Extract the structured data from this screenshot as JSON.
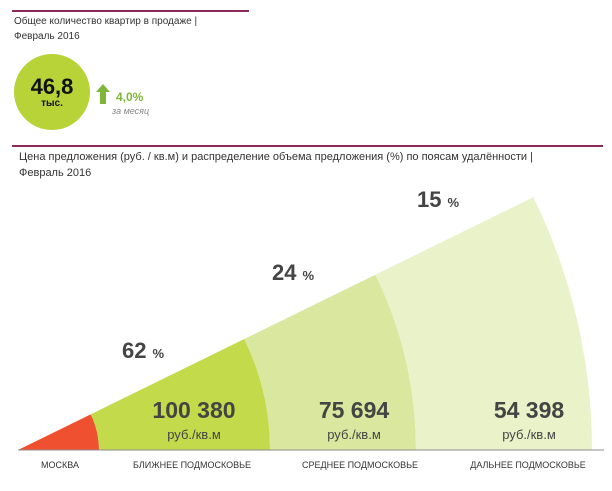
{
  "header": {
    "title_line1": "Общее количество квартир в продаже |",
    "title_line2": "Февраль 2016"
  },
  "kpi": {
    "value": "46,8",
    "unit": "тыс.",
    "change": "4,0%",
    "change_note": "за месяц"
  },
  "chart_header": {
    "line1": "Цена предложения (руб. / кв.м) и распределение объема предложения (%) по поясам удалённости |",
    "line2": "Февраль 2016"
  },
  "colors": {
    "accent_rule": "#8c2a5c",
    "kpi_circle": "#b7d337",
    "up_arrow": "#7fb63a",
    "moscow": "#ef5030",
    "near": "#c3da4a",
    "middle": "#d9e79f",
    "far": "#eaf2c9"
  },
  "icons": {
    "change": "arrow-up-icon"
  },
  "chart_data": {
    "type": "bar",
    "categories": [
      "МОСКВА",
      "БЛИЖНЕЕ ПОДМОСКОВЬЕ",
      "СРЕДНЕЕ ПОДМОСКОВЬЕ",
      "ДАЛЬНЕЕ ПОДМОСКОВЬЕ"
    ],
    "series": [
      {
        "values": [
          null,
          62,
          24,
          15
        ],
        "labels": [
          "",
          "62",
          "24",
          "15"
        ]
      },
      {
        "values": [
          null,
          100380,
          75694,
          54398
        ],
        "labels": [
          "",
          "100 380",
          "75 694",
          "54 398"
        ]
      }
    ],
    "percent_sign": "%",
    "price_unit": "руб./кв.м"
  }
}
